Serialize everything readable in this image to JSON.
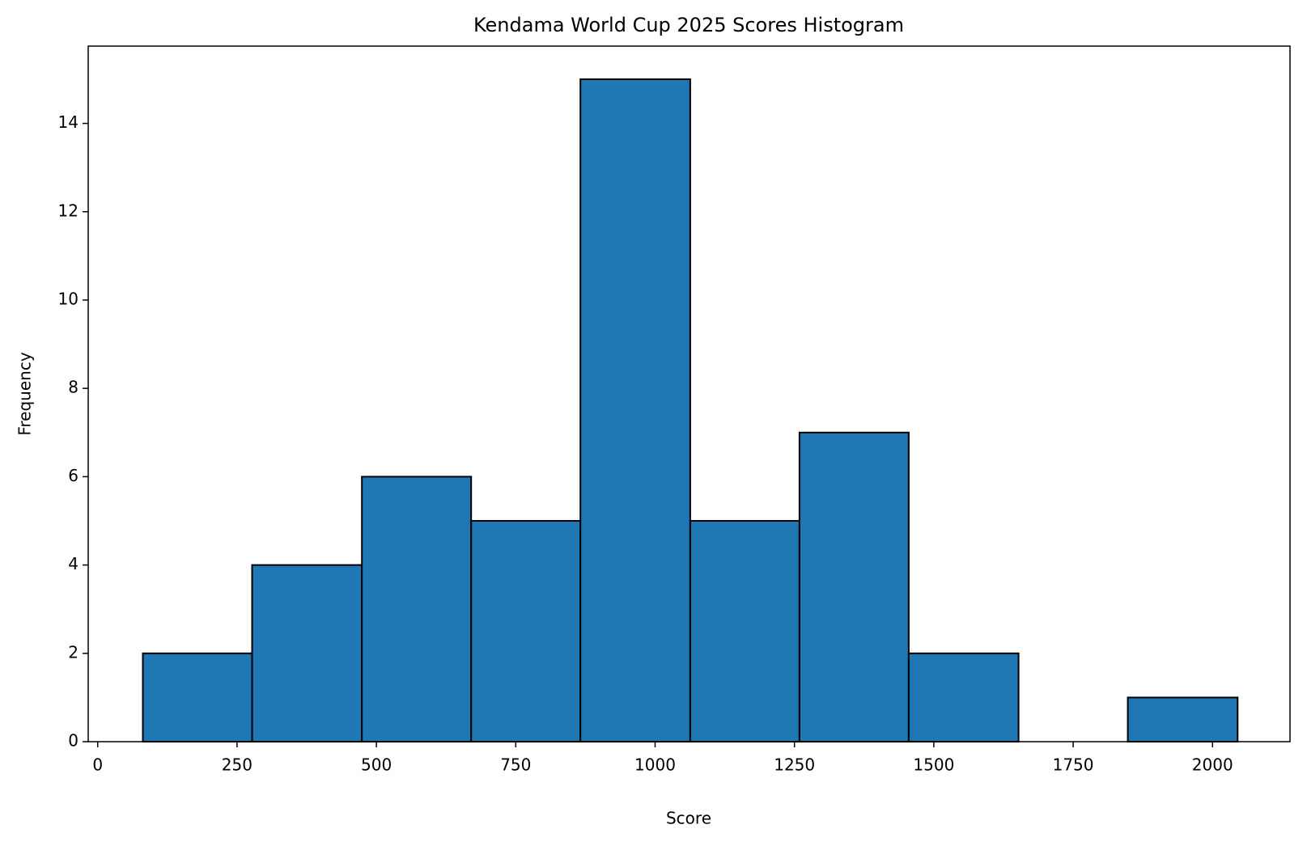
{
  "chart_data": {
    "type": "histogram",
    "title": "Kendama World Cup 2025 Scores Histogram",
    "x_label": "Score",
    "y_label": "Frequency",
    "bins": [
      81,
      277,
      474,
      670,
      866,
      1063,
      1259,
      1455,
      1652,
      1848,
      2045
    ],
    "values": [
      2,
      4,
      6,
      5,
      15,
      5,
      7,
      2,
      0,
      1
    ],
    "color": "#1f77b4",
    "edgecolor": "#000000",
    "xlim": [
      -17,
      2139
    ],
    "xticks": [
      0,
      250,
      500,
      750,
      1000,
      1250,
      1500,
      1750,
      2000
    ],
    "ylim": [
      0,
      15.75
    ],
    "yticks": [
      0,
      2,
      4,
      6,
      8,
      10,
      12,
      14
    ],
    "grid": false
  }
}
